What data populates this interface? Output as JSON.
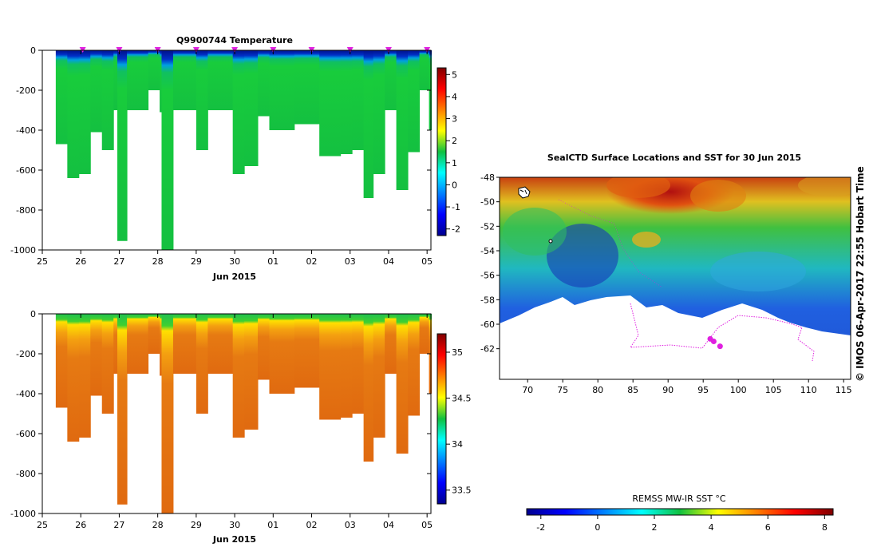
{
  "chart_data": [
    {
      "type": "heatmap",
      "title": "Q9900744  Temperature",
      "xlabel": "Jun 2015",
      "x_ticks": [
        "25",
        "26",
        "27",
        "28",
        "29",
        "30",
        "01",
        "02",
        "03",
        "04",
        "05"
      ],
      "xlim": [
        25,
        35.1
      ],
      "ylim": [
        -1000,
        0
      ],
      "y_ticks": [
        0,
        -200,
        -400,
        -600,
        -800,
        -1000
      ],
      "colorbar": {
        "ticks": [
          5,
          4,
          3,
          2,
          1,
          0,
          -1,
          -2
        ],
        "range": [
          -2.3,
          5.3
        ]
      },
      "profiles": [
        {
          "x": 25.35,
          "max_depth": 470
        },
        {
          "x": 25.65,
          "max_depth": 640
        },
        {
          "x": 25.95,
          "max_depth": 620
        },
        {
          "x": 26.25,
          "max_depth": 410
        },
        {
          "x": 26.55,
          "max_depth": 500
        },
        {
          "x": 26.85,
          "max_depth": 300
        },
        {
          "x": 26.95,
          "max_depth": 955
        },
        {
          "x": 27.2,
          "max_depth": 300
        },
        {
          "x": 27.5,
          "max_depth": 300
        },
        {
          "x": 27.75,
          "max_depth": 200
        },
        {
          "x": 28.05,
          "max_depth": 310
        },
        {
          "x": 28.1,
          "max_depth": 1000
        },
        {
          "x": 28.4,
          "max_depth": 300
        },
        {
          "x": 28.7,
          "max_depth": 300
        },
        {
          "x": 29.0,
          "max_depth": 500
        },
        {
          "x": 29.3,
          "max_depth": 300
        },
        {
          "x": 29.6,
          "max_depth": 300
        },
        {
          "x": 29.95,
          "max_depth": 620
        },
        {
          "x": 30.25,
          "max_depth": 580
        },
        {
          "x": 30.6,
          "max_depth": 330
        },
        {
          "x": 30.9,
          "max_depth": 400
        },
        {
          "x": 31.2,
          "max_depth": 400
        },
        {
          "x": 31.55,
          "max_depth": 370
        },
        {
          "x": 31.9,
          "max_depth": 370
        },
        {
          "x": 32.2,
          "max_depth": 530
        },
        {
          "x": 32.5,
          "max_depth": 530
        },
        {
          "x": 32.75,
          "max_depth": 520
        },
        {
          "x": 33.05,
          "max_depth": 500
        },
        {
          "x": 33.35,
          "max_depth": 740
        },
        {
          "x": 33.6,
          "max_depth": 620
        },
        {
          "x": 33.9,
          "max_depth": 300
        },
        {
          "x": 34.2,
          "max_depth": 700
        },
        {
          "x": 34.5,
          "max_depth": 510
        },
        {
          "x": 34.8,
          "max_depth": 200
        },
        {
          "x": 35.05,
          "max_depth": 400
        }
      ],
      "surface_markers_x": [
        26.05,
        27.0,
        28.0,
        29.0,
        30.0,
        31.0,
        32.0,
        33.0,
        34.0,
        35.0
      ]
    },
    {
      "type": "heatmap",
      "title": "",
      "xlabel": "Jun 2015",
      "x_ticks": [
        "25",
        "26",
        "27",
        "28",
        "29",
        "30",
        "01",
        "02",
        "03",
        "04",
        "05"
      ],
      "xlim": [
        25,
        35.1
      ],
      "ylim": [
        -1000,
        0
      ],
      "y_ticks": [
        0,
        -200,
        -400,
        -600,
        -800,
        -1000
      ],
      "colorbar": {
        "ticks": [
          35,
          34.5,
          34,
          33.5
        ],
        "range": [
          33.35,
          35.2
        ]
      }
    },
    {
      "type": "heatmap",
      "title": "SealCTD Surface Locations and SST for 30 Jun 2015",
      "xlabel": "",
      "x_ticks": [
        70,
        75,
        80,
        85,
        90,
        95,
        100,
        105,
        110,
        115
      ],
      "y_ticks": [
        -48,
        -50,
        -52,
        -54,
        -56,
        -58,
        -60,
        -62
      ],
      "xlim": [
        66,
        116
      ],
      "ylim": [
        -64.5,
        -48
      ],
      "colorbar_label": "REMSS MW-IR SST °C",
      "colorbar": {
        "ticks": [
          -2,
          0,
          2,
          4,
          6,
          8
        ],
        "range": [
          -2.5,
          8.3
        ]
      },
      "track_points": [
        [
          96.0,
          -61.2
        ],
        [
          96.5,
          -61.4
        ],
        [
          97.4,
          -61.8
        ]
      ]
    }
  ],
  "credit": "© IMOS 06-Apr-2017 22:55 Hobart Time"
}
